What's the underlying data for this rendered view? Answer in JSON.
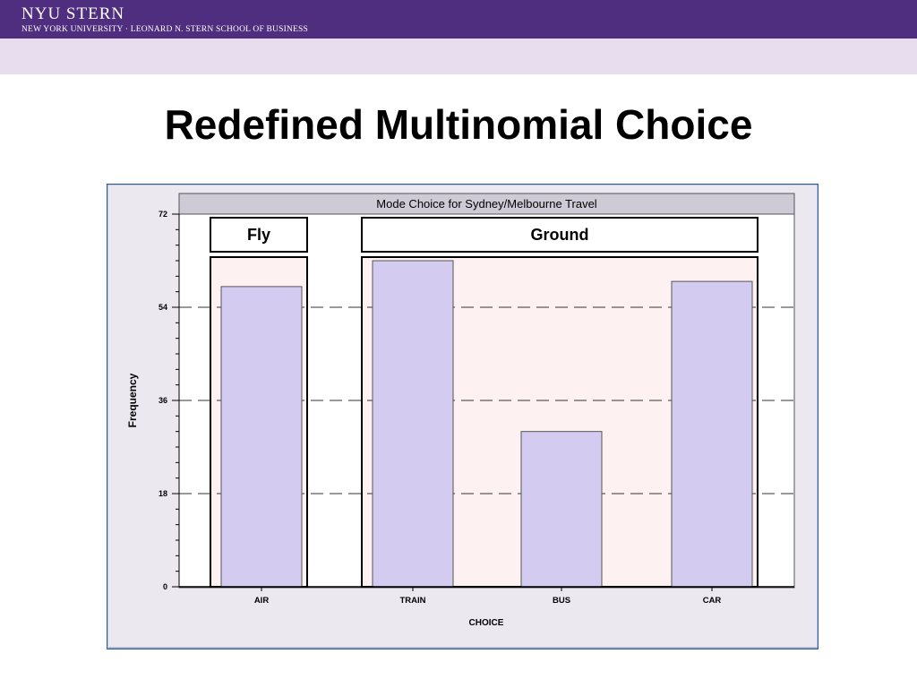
{
  "header": {
    "logo_text": "NYU STERN",
    "logo_subtitle": "NEW YORK UNIVERSITY · LEONARD N. STERN SCHOOL OF BUSINESS",
    "colors": {
      "bar": "#4f2d7f",
      "band": "#e8dcef"
    }
  },
  "slide": {
    "title": "Redefined Multinomial Choice"
  },
  "chart_data": {
    "type": "bar",
    "title": "Mode Choice for Sydney/Melbourne Travel",
    "xlabel": "CHOICE",
    "ylabel": "Frequency",
    "categories": [
      "AIR",
      "TRAIN",
      "BUS",
      "CAR"
    ],
    "values": [
      58,
      63,
      30,
      59
    ],
    "ylim": [
      0,
      72
    ],
    "yticks": [
      0,
      18,
      36,
      54,
      72
    ],
    "yticks_labels": [
      "0",
      "18",
      "36",
      "54",
      "72"
    ],
    "grid": "dashed horizontal at 18, 36, 54",
    "groups": [
      {
        "label": "Fly",
        "categories": [
          "AIR"
        ]
      },
      {
        "label": "Ground",
        "categories": [
          "TRAIN",
          "BUS",
          "CAR"
        ]
      }
    ],
    "colors": {
      "bar": "#d3cbf0",
      "group_fill": "#fdf1f1",
      "panel_bg": "#ebe8f0",
      "title_bg": "#cfcbd6"
    }
  }
}
